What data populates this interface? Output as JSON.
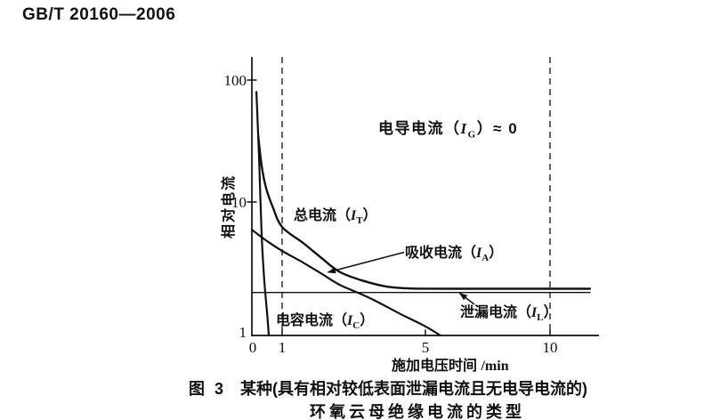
{
  "page": {
    "doc_code": "GB/T 20160—2006"
  },
  "figure_caption": {
    "fig_no": "图 3",
    "line1": "某种(具有相对较低表面泄漏电流且无电导电流的)",
    "line2": "环氧云母绝缘电流的类型"
  },
  "chart_data": {
    "type": "line",
    "title": "",
    "x_axis": {
      "label": "施加电压时间",
      "unit": "/min",
      "scale": "linear",
      "range": [
        0,
        11.6
      ],
      "ticks": [
        "0",
        "1",
        "5",
        "10"
      ],
      "tick_values": [
        0,
        1,
        5,
        10
      ]
    },
    "y_axis": {
      "label": "相对电流",
      "scale": "log",
      "range": [
        1,
        100
      ],
      "ticks": [
        "100",
        "10",
        "1"
      ],
      "tick_values": [
        100,
        10,
        1
      ]
    },
    "gridlines": {
      "dashed_vertical_at": [
        1,
        10
      ],
      "horizontal": false
    },
    "legend": "labels-on-plot",
    "series": [
      {
        "name": "总电流",
        "symbol": "IT",
        "label_parts": {
          "pre": "总电流（",
          "sym": "I",
          "sub": "T",
          "post": "）"
        },
        "points": [
          [
            0.21,
            35
          ],
          [
            0.32,
            20
          ],
          [
            0.47,
            13
          ],
          [
            0.68,
            9.3
          ],
          [
            1,
            6.5
          ],
          [
            1.6,
            4.9
          ],
          [
            2.1,
            3.8
          ],
          [
            2.6,
            3.0
          ],
          [
            3.2,
            2.6
          ],
          [
            3.9,
            2.33
          ],
          [
            4.6,
            2.25
          ],
          [
            5.8,
            2.24
          ],
          [
            8,
            2.24
          ],
          [
            11.6,
            2.24
          ]
        ]
      },
      {
        "name": "吸收电流",
        "symbol": "IA",
        "label_parts": {
          "pre": "吸收电流（",
          "sym": "I",
          "sub": "A",
          "post": "）"
        },
        "points": [
          [
            0,
            6.2
          ],
          [
            0.5,
            5.1
          ],
          [
            1,
            4.3
          ],
          [
            1.6,
            3.5
          ],
          [
            2.1,
            2.9
          ],
          [
            2.6,
            2.4
          ],
          [
            3.1,
            2.1
          ],
          [
            3.6,
            1.82
          ],
          [
            4.3,
            1.45
          ],
          [
            5,
            1.17
          ],
          [
            5.6,
            1.0
          ]
        ]
      },
      {
        "name": "电容电流",
        "symbol": "IC",
        "label_parts": {
          "pre": "电容电流（",
          "sym": "I",
          "sub": "C",
          "post": "）"
        },
        "points": [
          [
            0.15,
            80
          ],
          [
            0.24,
            22
          ],
          [
            0.32,
            5.9
          ],
          [
            0.41,
            2.6
          ],
          [
            0.5,
            1.5
          ],
          [
            0.56,
            1.0
          ]
        ]
      },
      {
        "name": "泄漏电流",
        "symbol": "IL",
        "label_parts": {
          "pre": "泄漏电流（",
          "sym": "I",
          "sub": "L",
          "post": "）"
        },
        "points": [
          [
            0,
            2.1
          ],
          [
            11.6,
            2.1
          ]
        ]
      },
      {
        "name": "电导电流",
        "symbol": "IG",
        "label_parts": {
          "pre": "电导电流（",
          "sym": "I",
          "sub": "G",
          "post": "）≈ 0"
        },
        "points": []
      }
    ]
  }
}
